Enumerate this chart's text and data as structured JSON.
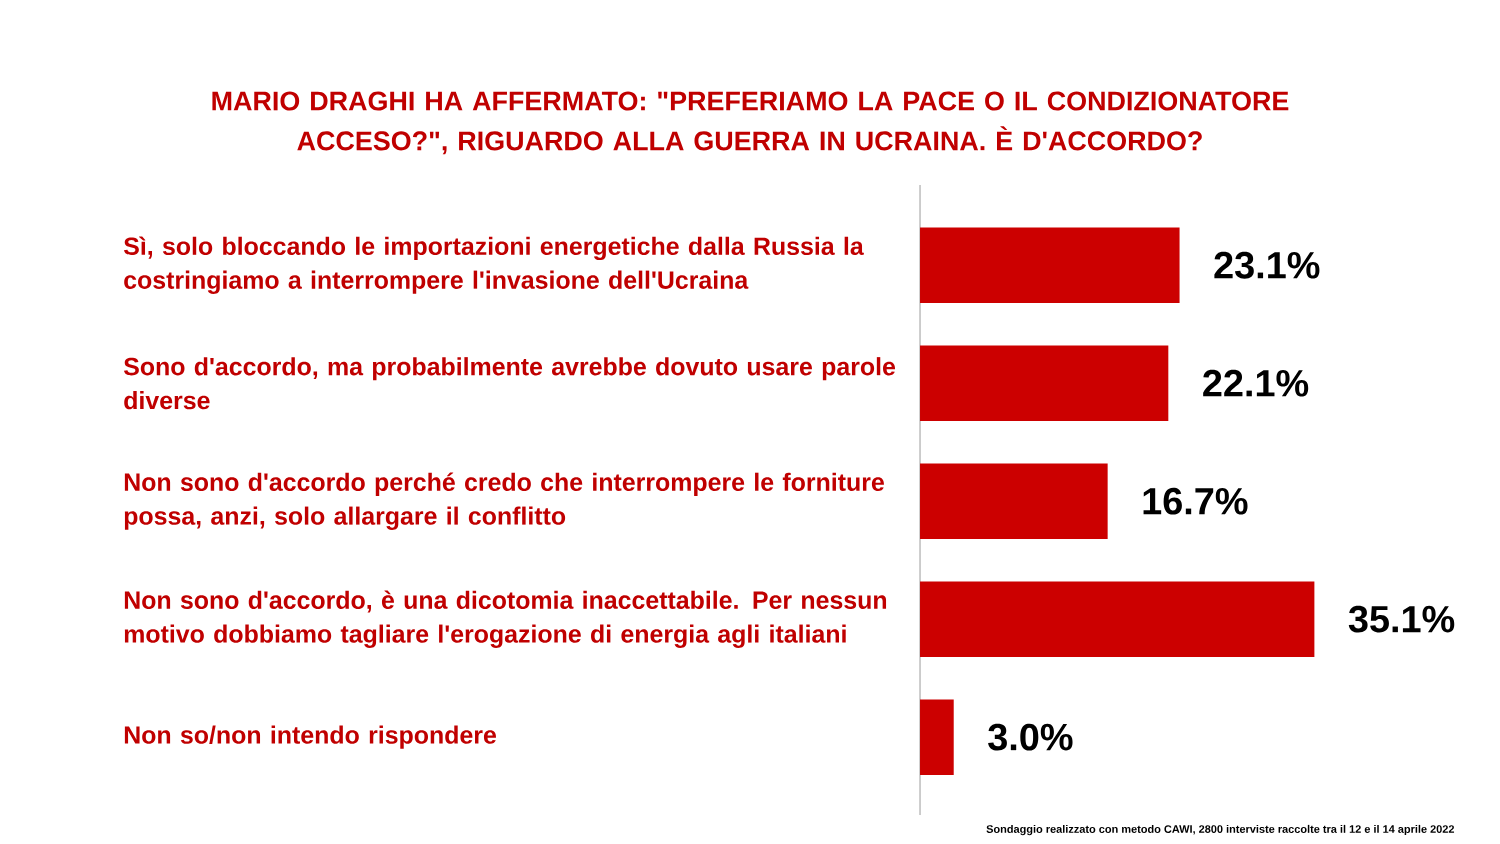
{
  "chart_data": {
    "type": "bar",
    "orientation": "horizontal",
    "title": "MARIO DRAGHI HA AFFERMATO: \"PREFERIAMO LA PACE O IL CONDIZIONATORE ACCESO?\", RIGUARDO ALLA GUERRA IN UCRAINA. È D'ACCORDO?",
    "categories": [
      "Sì, solo bloccando le importazioni energetiche dalla Russia la costringiamo a interrompere l'invasione dell'Ucraina",
      "Sono d'accordo, ma probabilmente avrebbe dovuto usare parole diverse",
      "Non sono d'accordo perché credo che interrompere le forniture possa, anzi, solo allargare il conflitto",
      "Non sono d'accordo, è una dicotomia inaccettabile. Per nessun motivo dobbiamo tagliare l'erogazione di energia agli italiani",
      "Non so/non intendo rispondere"
    ],
    "values": [
      23.1,
      22.1,
      16.7,
      35.1,
      3.0
    ],
    "value_labels": [
      "23.1%",
      "22.1%",
      "16.7%",
      "35.1%",
      "3.0%"
    ],
    "color": "#cc0000",
    "annotations": [
      "Sondaggio realizzato con metodo CAWI, 2800 interviste raccolte tra il 12 e il 14 aprile 2022"
    ]
  }
}
